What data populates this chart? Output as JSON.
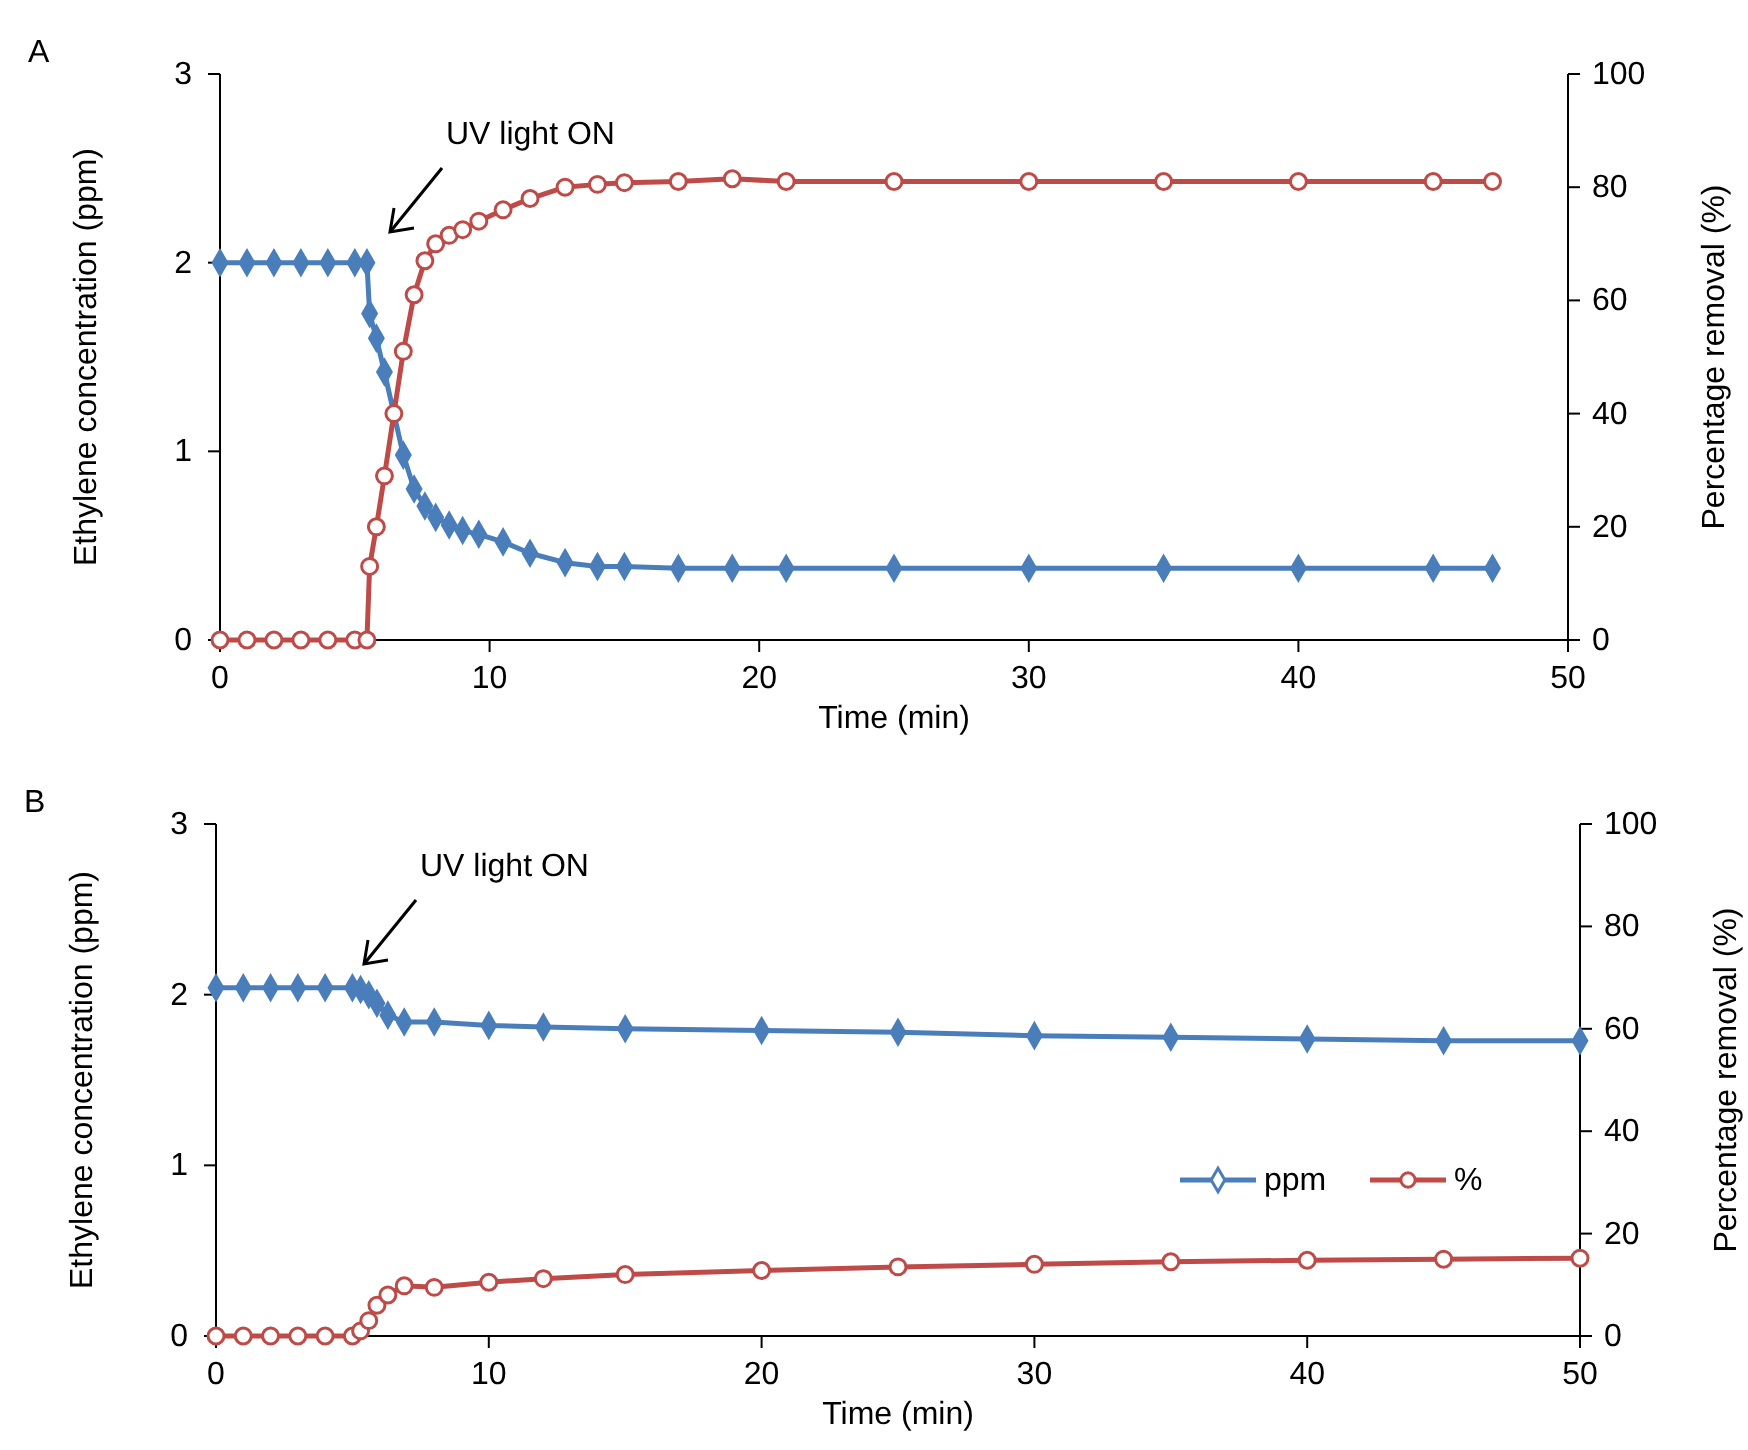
{
  "chart_data": [
    {
      "type": "line",
      "xlabel": "Time (min)",
      "ylabel": "Ethylene concentration (ppm)",
      "y2label": "Percentage removal (%)",
      "xlim": [
        0,
        50
      ],
      "xticks": [
        0,
        10,
        20,
        30,
        40,
        50
      ],
      "ylim": [
        0,
        3
      ],
      "yticks": [
        0,
        1,
        2,
        3
      ],
      "y2lim": [
        0,
        100
      ],
      "y2ticks": [
        0,
        20,
        40,
        60,
        80,
        100
      ],
      "legend": false,
      "grid": false,
      "annotations": [
        "A",
        "UV light ON"
      ],
      "x": [
        0,
        1,
        2,
        3,
        4,
        5,
        5.45,
        5.55,
        5.8,
        6.1,
        6.45,
        6.8,
        7.2,
        7.6,
        8,
        8.5,
        9,
        9.6,
        10.5,
        11.5,
        12.8,
        14,
        15,
        17,
        19,
        21,
        25,
        30,
        35,
        40,
        45,
        47.2
      ],
      "series": [
        {
          "color": "#4a7ebb",
          "marker": "diamond",
          "values": [
            2,
            2,
            2,
            2,
            2,
            2,
            2,
            1.73,
            1.6,
            1.42,
            1.2,
            0.98,
            0.8,
            0.71,
            0.65,
            0.61,
            0.58,
            0.56,
            0.52,
            0.46,
            0.41,
            0.39,
            0.39,
            0.38,
            0.38,
            0.38,
            0.38,
            0.38,
            0.38,
            0.38,
            0.38,
            0.38
          ]
        },
        {
          "color": "#be4b48",
          "marker": "circle",
          "axis": "y2",
          "values": [
            0,
            0,
            0,
            0,
            0,
            0,
            0,
            13,
            20,
            29,
            40,
            51,
            61,
            67,
            70,
            71.5,
            72.5,
            74,
            76,
            78,
            80,
            80.5,
            80.8,
            81,
            81.5,
            81,
            81,
            81,
            81,
            81,
            81,
            81
          ]
        }
      ]
    },
    {
      "type": "line",
      "xlabel": "Time (min)",
      "ylabel": "Ethylene concentration (ppm)",
      "y2label": "Percentage removal (%)",
      "xlim": [
        0,
        50
      ],
      "xticks": [
        0,
        10,
        20,
        30,
        40,
        50
      ],
      "ylim": [
        0,
        3
      ],
      "yticks": [
        0,
        1,
        2,
        3
      ],
      "y2lim": [
        0,
        100
      ],
      "y2ticks": [
        0,
        20,
        40,
        60,
        80,
        100
      ],
      "legend": "right",
      "grid": false,
      "annotations": [
        "B",
        "UV light ON"
      ],
      "x": [
        0,
        1,
        2,
        3,
        4,
        5,
        5.3,
        5.6,
        5.9,
        6.3,
        6.9,
        8,
        10,
        12,
        15,
        20,
        25,
        30,
        35,
        40,
        45,
        50
      ],
      "series": [
        {
          "name": "ppm",
          "color": "#4a7ebb",
          "marker": "diamond",
          "values": [
            2.04,
            2.04,
            2.04,
            2.04,
            2.04,
            2.04,
            2.03,
            2.0,
            1.95,
            1.88,
            1.84,
            1.84,
            1.82,
            1.81,
            1.8,
            1.79,
            1.78,
            1.76,
            1.75,
            1.74,
            1.73,
            1.73
          ]
        },
        {
          "name": "%",
          "color": "#be4b48",
          "marker": "circle",
          "axis": "y2",
          "values": [
            0,
            0,
            0,
            0,
            0,
            0,
            1,
            3,
            6,
            8,
            9.8,
            9.5,
            10.5,
            11.2,
            12,
            12.8,
            13.5,
            14,
            14.5,
            14.8,
            15,
            15.2
          ]
        }
      ]
    }
  ]
}
